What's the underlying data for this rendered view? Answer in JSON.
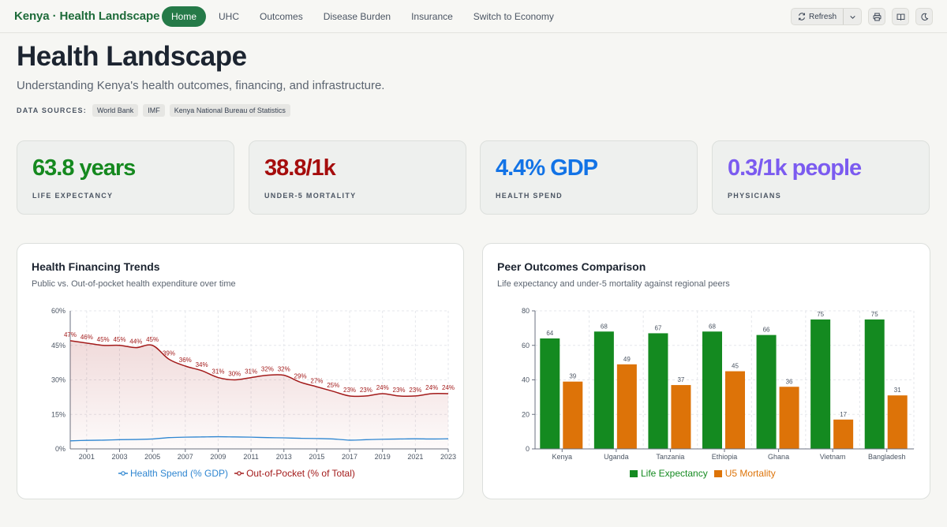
{
  "nav": {
    "brand": "Kenya · Health Landscape",
    "links": [
      "Home",
      "UHC",
      "Outcomes",
      "Disease Burden",
      "Insurance",
      "Switch to Economy"
    ],
    "refresh_label": "Refresh",
    "icons": [
      "refresh-icon",
      "chevron-down-icon",
      "print-icon",
      "book-icon",
      "moon-icon"
    ]
  },
  "header": {
    "title": "Health Landscape",
    "subtitle": "Understanding Kenya's health outcomes, financing, and infrastructure.",
    "sources_label": "DATA SOURCES:",
    "sources": [
      "World Bank",
      "IMF",
      "Kenya National Bureau of Statistics"
    ]
  },
  "kpis": [
    {
      "value": "63.8 years",
      "label": "LIFE EXPECTANCY",
      "color": "#15891f"
    },
    {
      "value": "38.8/1k",
      "label": "UNDER-5 MORTALITY",
      "color": "#a50d0d"
    },
    {
      "value": "4.4% GDP",
      "label": "HEALTH SPEND",
      "color": "#1273e6"
    },
    {
      "value": "0.3/1k people",
      "label": "PHYSICIANS",
      "color": "#7b5bf0"
    }
  ],
  "financing": {
    "title": "Health Financing Trends",
    "subtitle": "Public vs. Out-of-pocket health expenditure over time"
  },
  "peers": {
    "title": "Peer Outcomes Comparison",
    "subtitle": "Life expectancy and under-5 mortality against regional peers"
  },
  "colors": {
    "accent": "#257a48",
    "health_spend": "#2f86d1",
    "oop": "#a31b1b",
    "life_exp": "#148a20",
    "u5": "#dd7308"
  },
  "chart_data": [
    {
      "type": "line",
      "ylim": [
        0,
        60
      ],
      "yticks": [
        "0%",
        "15%",
        "30%",
        "45%",
        "60%"
      ],
      "x": [
        2000,
        2001,
        2002,
        2003,
        2004,
        2005,
        2006,
        2007,
        2008,
        2009,
        2010,
        2011,
        2012,
        2013,
        2014,
        2015,
        2016,
        2017,
        2018,
        2019,
        2020,
        2021,
        2022,
        2023
      ],
      "xtick_labels": [
        "2001",
        "2003",
        "2005",
        "2007",
        "2009",
        "2011",
        "2013",
        "2015",
        "2017",
        "2019",
        "2021",
        "2023"
      ],
      "series": [
        {
          "name": "Health Spend (% GDP)",
          "values": [
            3.5,
            3.7,
            3.8,
            4.0,
            4.1,
            4.3,
            4.9,
            5.1,
            5.2,
            5.3,
            5.2,
            5.1,
            4.9,
            4.8,
            4.6,
            4.5,
            4.3,
            3.8,
            4.0,
            4.2,
            4.3,
            4.4,
            4.3,
            4.4
          ]
        },
        {
          "name": "Out-of-Pocket (% of Total)",
          "values": [
            47,
            46,
            45,
            45,
            44,
            45,
            39,
            36,
            34,
            31,
            30,
            31,
            32,
            32,
            29,
            27,
            25,
            23,
            23,
            24,
            23,
            23,
            24,
            24
          ]
        }
      ],
      "labels": [
        "47%",
        "46%",
        "45%",
        "45%",
        "44%",
        "45%",
        "39%",
        "36%",
        "34%",
        "31%",
        "30%",
        "31%",
        "32%",
        "32%",
        "29%",
        "27%",
        "25%",
        "23%",
        "23%",
        "24%",
        "23%",
        "23%",
        "24%",
        "24%"
      ]
    },
    {
      "type": "bar",
      "ylim": [
        0,
        80
      ],
      "yticks": [
        "0",
        "20",
        "40",
        "60",
        "80"
      ],
      "categories": [
        "Kenya",
        "Uganda",
        "Tanzania",
        "Ethiopia",
        "Ghana",
        "Vietnam",
        "Bangladesh"
      ],
      "series": [
        {
          "name": "Life Expectancy",
          "values": [
            64,
            68,
            67,
            68,
            66,
            75,
            75
          ]
        },
        {
          "name": "U5 Mortality",
          "values": [
            39,
            49,
            37,
            45,
            36,
            17,
            31
          ]
        }
      ]
    }
  ]
}
